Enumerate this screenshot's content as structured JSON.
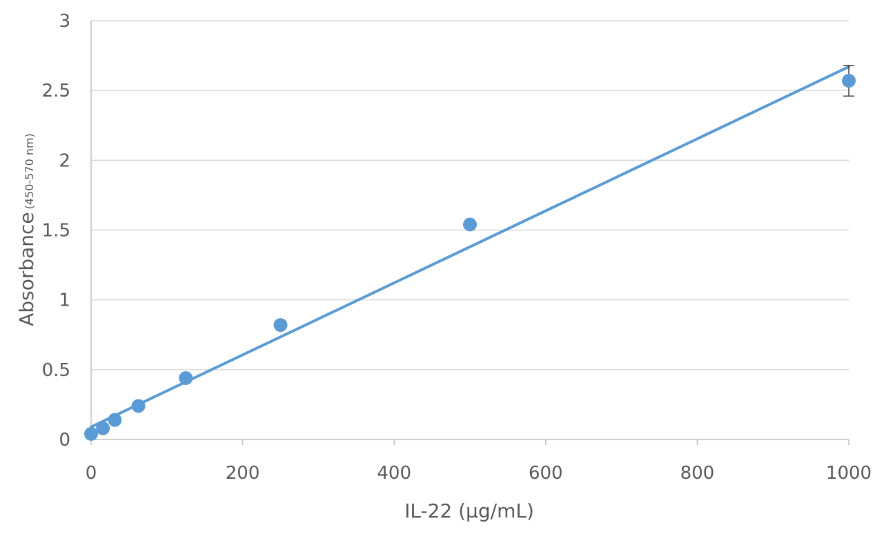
{
  "chart_data": {
    "type": "scatter",
    "title": "",
    "xlabel": "IL-22 (µg/mL)",
    "ylabel": "Absorbance",
    "ylabel_sub": "(450-570 nm)",
    "xlim": [
      0,
      1000
    ],
    "ylim": [
      0,
      3
    ],
    "x_ticks": [
      0,
      200,
      400,
      600,
      800,
      1000
    ],
    "y_ticks": [
      0,
      0.5,
      1,
      1.5,
      2,
      2.5,
      3
    ],
    "x_tick_labels": [
      "0",
      "200",
      "400",
      "600",
      "800",
      "1000"
    ],
    "y_tick_labels": [
      "0",
      "0.5",
      "1",
      "1.5",
      "2",
      "2.5",
      "3"
    ],
    "grid": "horizontal",
    "legend": "none",
    "series": [
      {
        "x": [
          0,
          15.6,
          31.25,
          62.5,
          125,
          250,
          500,
          1000
        ],
        "y": [
          0.04,
          0.08,
          0.14,
          0.24,
          0.44,
          0.82,
          1.54,
          2.57
        ],
        "error_y": [
          0,
          0,
          0,
          0,
          0,
          0,
          0,
          0.11
        ]
      }
    ],
    "trendline": {
      "type": "linear",
      "x": [
        0,
        1000
      ],
      "y": [
        0.09,
        2.67
      ]
    },
    "colors": {
      "series": "#5b9bd5",
      "grid": "#d9d9d9",
      "axis": "#bfbfbf",
      "text": "#595959",
      "error_bar": "#404040"
    }
  }
}
